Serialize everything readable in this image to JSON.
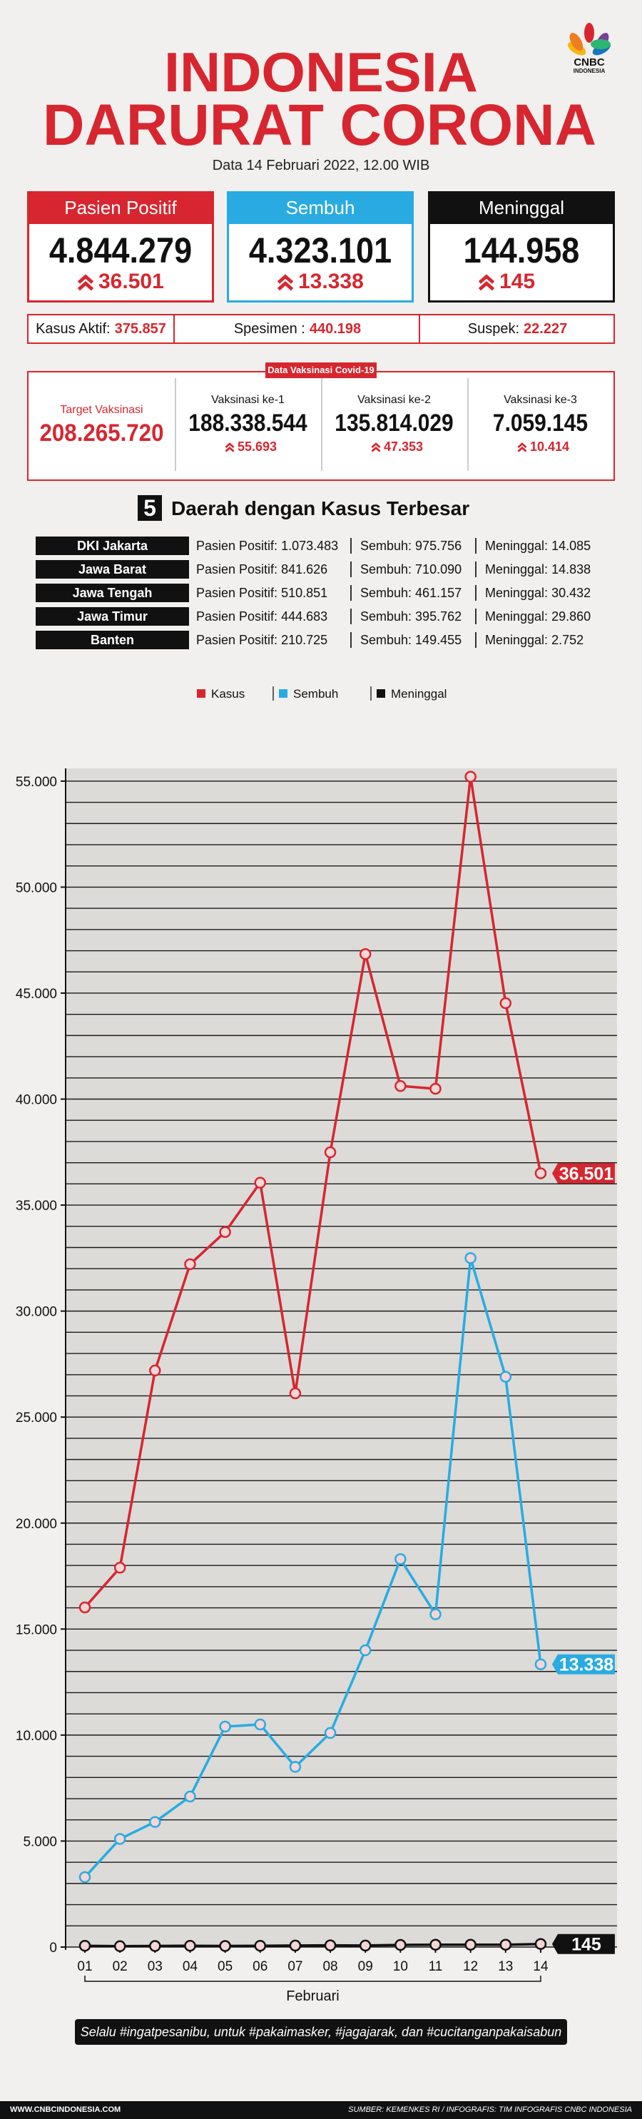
{
  "header": {
    "title_line1": "INDONESIA",
    "title_line2": "DARURAT CORONA",
    "date": "Data 14 Februari 2022, 12.00 WIB",
    "logo": "CNBC",
    "logo_sub": "INDONESIA"
  },
  "cards": [
    {
      "label": "Pasien Positif",
      "value": "4.844.279",
      "change": "36.501"
    },
    {
      "label": "Sembuh",
      "value": "4.323.101",
      "change": "13.338"
    },
    {
      "label": "Meninggal",
      "value": "144.958",
      "change": "145"
    }
  ],
  "summary": [
    {
      "label": "Kasus Aktif:",
      "value": "375.857"
    },
    {
      "label": "Spesimen :",
      "value": "440.198"
    },
    {
      "label": "Suspek:",
      "value": "22.227"
    }
  ],
  "vaccination": {
    "title": "Data Vaksinasi Covid-19",
    "target_label": "Target Vaksinasi",
    "target": "208.265.720",
    "doses": [
      {
        "label": "Vaksinasi ke-1",
        "value": "188.338.544",
        "change": "55.693"
      },
      {
        "label": "Vaksinasi ke-2",
        "value": "135.814.029",
        "change": "47.353"
      },
      {
        "label": "Vaksinasi ke-3",
        "value": "7.059.145",
        "change": "10.414"
      }
    ]
  },
  "regions": {
    "number": "5",
    "title": "Daerah dengan Kasus Terbesar",
    "labels": [
      "Pasien Positif:",
      "Sembuh:",
      "Meninggal:"
    ],
    "rows": [
      [
        "DKI Jakarta",
        "1.073.483",
        "975.756",
        "14.085"
      ],
      [
        "Jawa Barat",
        "841.626",
        "710.090",
        "14.838"
      ],
      [
        "Jawa Tengah",
        "510.851",
        "461.157",
        "30.432"
      ],
      [
        "Jawa Timur",
        "444.683",
        "395.762",
        "29.860"
      ],
      [
        "Banten",
        "210.725",
        "149.455",
        "2.752"
      ]
    ]
  },
  "chart_data": {
    "type": "line",
    "xlabel": "Februari",
    "categories": [
      "01",
      "02",
      "03",
      "04",
      "05",
      "06",
      "07",
      "08",
      "09",
      "10",
      "11",
      "12",
      "13",
      "14"
    ],
    "series": [
      {
        "name": "Kasus",
        "color": "#d7262f",
        "values": [
          16021,
          17895,
          27197,
          32211,
          33729,
          36057,
          26121,
          37492,
          46843,
          40618,
          40489,
          55209,
          44526,
          36501
        ],
        "value_labels": [
          null,
          null,
          null,
          null,
          null,
          null,
          null,
          null,
          null,
          null,
          null,
          null,
          null,
          "36.501"
        ]
      },
      {
        "name": "Sembuh",
        "color": "#29abe2",
        "values": [
          3300,
          5100,
          5900,
          7100,
          10400,
          10500,
          8500,
          10100,
          14000,
          18300,
          15700,
          32500,
          26900,
          13338
        ],
        "value_labels": [
          null,
          null,
          null,
          null,
          null,
          null,
          null,
          null,
          null,
          null,
          null,
          null,
          null,
          "13.338"
        ]
      },
      {
        "name": "Meninggal",
        "color": "#111111",
        "values": [
          60,
          40,
          50,
          60,
          50,
          60,
          70,
          80,
          70,
          100,
          110,
          110,
          110,
          145
        ],
        "value_labels": [
          null,
          null,
          null,
          null,
          null,
          null,
          null,
          null,
          null,
          null,
          null,
          null,
          null,
          "145"
        ]
      }
    ],
    "ylim": [
      0,
      55600
    ],
    "yticks": [
      {
        "value": 0,
        "label": "0"
      },
      {
        "value": 5000,
        "label": "5.000"
      },
      {
        "value": 10000,
        "label": "10.000"
      },
      {
        "value": 15000,
        "label": "15.000"
      },
      {
        "value": 20000,
        "label": "20.000"
      },
      {
        "value": 25000,
        "label": "25.000"
      },
      {
        "value": 30000,
        "label": "30.000"
      },
      {
        "value": 35000,
        "label": "35.000"
      },
      {
        "value": 40000,
        "label": "40.000"
      },
      {
        "value": 45000,
        "label": "45.000"
      },
      {
        "value": 50000,
        "label": "50.000"
      },
      {
        "value": 55000,
        "label": "55.000"
      }
    ],
    "minor_yticks": [
      0,
      1000,
      2000,
      3000,
      4000,
      5000,
      6000,
      7000,
      8000,
      9000,
      10000,
      11000,
      12000,
      13000,
      14000,
      15000,
      16000,
      17000,
      18000,
      19000,
      20000,
      21000,
      22000,
      23000,
      24000,
      25000,
      26000,
      27000,
      28000,
      29000,
      30000,
      31000,
      32000,
      33000,
      34000,
      35000,
      36000,
      37000,
      38000,
      39000,
      40000,
      41000,
      42000,
      43000,
      44000,
      45000,
      46000,
      47000,
      48000,
      49000,
      50000,
      51000,
      52000,
      53000,
      54000,
      55000
    ],
    "grid": true,
    "legend": "top"
  },
  "footer": {
    "slogan": "Selalu #ingatpesanibu, untuk #pakaimasker, #jagajarak, dan #cucitanganpakaisabun",
    "website": "WWW.CNBCINDONESIA.COM",
    "source": "SUMBER: KEMENKES RI / INFOGRAFIS: TIM INFOGRAFIS CNBC INDONESIA"
  }
}
